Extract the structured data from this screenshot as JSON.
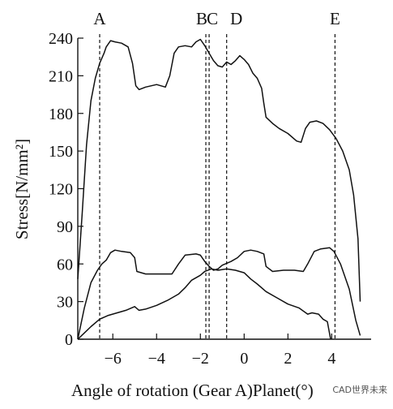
{
  "chart_data": {
    "type": "line",
    "title": "",
    "xlabel": "Angle of rotation (Gear A)Planet(°)",
    "ylabel": "Stress[N/mm²]",
    "xlim": [
      -7.6,
      5.8
    ],
    "ylim": [
      0,
      240
    ],
    "xticks": [
      -6,
      -4,
      -2,
      0,
      2,
      4
    ],
    "xtick_labels": [
      "−6",
      "−4",
      "−2",
      "0",
      "2",
      "4"
    ],
    "yticks": [
      0,
      30,
      60,
      90,
      120,
      150,
      180,
      210,
      240
    ],
    "ytick_labels": [
      "0",
      "30",
      "60",
      "90",
      "120",
      "150",
      "180",
      "210",
      "240"
    ],
    "grid": false,
    "legend": "none",
    "markers": [
      {
        "label": "A",
        "x": -6.6
      },
      {
        "label": "B",
        "x": -1.75
      },
      {
        "label": "C",
        "x": -1.6
      },
      {
        "label": "D",
        "x": -0.8
      },
      {
        "label": "E",
        "x": 4.15
      }
    ],
    "series": [
      {
        "points": [
          [
            -7.6,
            48
          ],
          [
            -7.4,
            100
          ],
          [
            -7.2,
            155
          ],
          [
            -7.0,
            190
          ],
          [
            -6.8,
            208
          ],
          [
            -6.6,
            220
          ],
          [
            -6.4,
            228
          ],
          [
            -6.3,
            233
          ],
          [
            -6.1,
            238
          ],
          [
            -5.9,
            237
          ],
          [
            -5.6,
            236
          ],
          [
            -5.3,
            233
          ],
          [
            -5.1,
            220
          ],
          [
            -4.95,
            202
          ],
          [
            -4.8,
            199
          ],
          [
            -4.5,
            201
          ],
          [
            -4.0,
            203
          ],
          [
            -3.6,
            201
          ],
          [
            -3.4,
            210
          ],
          [
            -3.2,
            228
          ],
          [
            -3.0,
            233
          ],
          [
            -2.7,
            234
          ],
          [
            -2.4,
            233
          ],
          [
            -2.2,
            237
          ],
          [
            -2.0,
            239
          ],
          [
            -1.8,
            234
          ],
          [
            -1.6,
            228
          ],
          [
            -1.4,
            222
          ],
          [
            -1.2,
            218
          ],
          [
            -1.0,
            217
          ],
          [
            -0.8,
            221
          ],
          [
            -0.6,
            219
          ],
          [
            -0.4,
            222
          ],
          [
            -0.2,
            226
          ],
          [
            0.0,
            223
          ],
          [
            0.2,
            219
          ],
          [
            0.4,
            212
          ],
          [
            0.6,
            208
          ],
          [
            0.8,
            200
          ],
          [
            0.9,
            188
          ],
          [
            1.0,
            177
          ],
          [
            1.3,
            172
          ],
          [
            1.6,
            168
          ],
          [
            2.0,
            164
          ],
          [
            2.4,
            158
          ],
          [
            2.6,
            157
          ],
          [
            2.8,
            168
          ],
          [
            3.0,
            173
          ],
          [
            3.3,
            174
          ],
          [
            3.6,
            172
          ],
          [
            3.9,
            167
          ],
          [
            4.2,
            160
          ],
          [
            4.5,
            150
          ],
          [
            4.8,
            135
          ],
          [
            5.0,
            115
          ],
          [
            5.2,
            80
          ],
          [
            5.3,
            30
          ]
        ]
      },
      {
        "points": [
          [
            -7.6,
            0
          ],
          [
            -7.3,
            25
          ],
          [
            -7.0,
            45
          ],
          [
            -6.7,
            55
          ],
          [
            -6.5,
            60
          ],
          [
            -6.3,
            63
          ],
          [
            -6.1,
            69
          ],
          [
            -5.9,
            71
          ],
          [
            -5.6,
            70
          ],
          [
            -5.2,
            69
          ],
          [
            -5.0,
            65
          ],
          [
            -4.9,
            54
          ],
          [
            -4.5,
            52
          ],
          [
            -4.0,
            52
          ],
          [
            -3.3,
            52
          ],
          [
            -3.0,
            60
          ],
          [
            -2.7,
            67
          ],
          [
            -2.2,
            68
          ],
          [
            -2.0,
            67
          ],
          [
            -1.8,
            62
          ],
          [
            -1.6,
            58
          ],
          [
            -1.4,
            55
          ],
          [
            -1.2,
            56
          ],
          [
            -1.0,
            59
          ],
          [
            -0.6,
            62
          ],
          [
            -0.3,
            65
          ],
          [
            0.0,
            70
          ],
          [
            0.3,
            71
          ],
          [
            0.6,
            70
          ],
          [
            0.9,
            68
          ],
          [
            1.0,
            58
          ],
          [
            1.3,
            54
          ],
          [
            1.8,
            55
          ],
          [
            2.3,
            55
          ],
          [
            2.7,
            54
          ],
          [
            2.9,
            60
          ],
          [
            3.2,
            70
          ],
          [
            3.5,
            72
          ],
          [
            3.9,
            73
          ],
          [
            4.1,
            70
          ],
          [
            4.4,
            60
          ],
          [
            4.8,
            40
          ],
          [
            5.1,
            15
          ],
          [
            5.3,
            3
          ]
        ]
      },
      {
        "points": [
          [
            -7.6,
            0
          ],
          [
            -7.3,
            5
          ],
          [
            -7.0,
            10
          ],
          [
            -6.6,
            16
          ],
          [
            -6.2,
            19
          ],
          [
            -5.8,
            21
          ],
          [
            -5.4,
            23
          ],
          [
            -5.0,
            26
          ],
          [
            -4.8,
            23
          ],
          [
            -4.5,
            24
          ],
          [
            -4.0,
            27
          ],
          [
            -3.5,
            31
          ],
          [
            -3.0,
            36
          ],
          [
            -2.7,
            41
          ],
          [
            -2.4,
            47
          ],
          [
            -2.0,
            51
          ],
          [
            -1.8,
            54
          ],
          [
            -1.5,
            56
          ],
          [
            -1.2,
            55
          ],
          [
            -0.8,
            56
          ],
          [
            -0.4,
            55
          ],
          [
            0.0,
            53
          ],
          [
            0.3,
            48
          ],
          [
            0.6,
            44
          ],
          [
            1.0,
            38
          ],
          [
            1.5,
            33
          ],
          [
            2.0,
            28
          ],
          [
            2.5,
            25
          ],
          [
            2.9,
            20
          ],
          [
            3.1,
            21
          ],
          [
            3.4,
            20
          ],
          [
            3.6,
            16
          ],
          [
            3.8,
            14
          ],
          [
            3.95,
            0
          ]
        ]
      }
    ]
  },
  "watermark": "CAD世界未来"
}
